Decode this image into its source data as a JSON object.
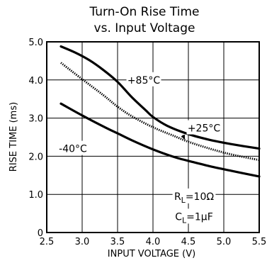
{
  "chart_data": {
    "type": "line",
    "title_line1": "Turn-On Rise Time",
    "title_line2": "vs. Input Voltage",
    "xlabel": "INPUT VOLTAGE (V)",
    "ylabel": "RISE TIME (ms)",
    "xlim": [
      2.5,
      5.5
    ],
    "ylim": [
      0,
      5.0
    ],
    "xticks": [
      "2.5",
      "3.0",
      "3.5",
      "4.0",
      "4.5",
      "5.0",
      "5.5"
    ],
    "yticks": [
      "0",
      "1.0",
      "2.0",
      "3.0",
      "4.0",
      "5.0"
    ],
    "grid": true,
    "series": [
      {
        "name": "+85°C",
        "style": "solid",
        "x": [
          2.7,
          2.9,
          3.1,
          3.3,
          3.5,
          3.7,
          3.9,
          4.0,
          4.2,
          4.5,
          4.8,
          5.1,
          5.5
        ],
        "y": [
          4.88,
          4.72,
          4.52,
          4.26,
          3.95,
          3.55,
          3.2,
          3.03,
          2.8,
          2.58,
          2.43,
          2.32,
          2.2
        ]
      },
      {
        "name": "+25°C",
        "style": "dotted",
        "x": [
          2.7,
          3.0,
          3.3,
          3.5,
          3.7,
          4.0,
          4.3,
          4.5,
          4.8,
          5.1,
          5.5
        ],
        "y": [
          4.45,
          4.02,
          3.6,
          3.3,
          3.05,
          2.76,
          2.53,
          2.38,
          2.2,
          2.05,
          1.9
        ]
      },
      {
        "name": "-40°C",
        "style": "solid",
        "x": [
          2.7,
          3.0,
          3.3,
          3.5,
          3.7,
          4.0,
          4.3,
          4.5,
          4.8,
          5.1,
          5.5
        ],
        "y": [
          3.38,
          3.07,
          2.78,
          2.6,
          2.42,
          2.18,
          1.98,
          1.88,
          1.74,
          1.62,
          1.47
        ]
      }
    ],
    "series_labels": [
      {
        "text": "+85°C",
        "at_x": 3.87,
        "at_y": 4.0
      },
      {
        "text": "+25°C",
        "at_x": 4.72,
        "at_y": 2.74
      },
      {
        "text": "-40°C",
        "at_x": 2.87,
        "at_y": 2.2
      }
    ],
    "annotations": [
      {
        "prefix": "R",
        "sub": "L",
        "suffix": "=10Ω",
        "at_x": 4.58,
        "at_y": 0.95
      },
      {
        "prefix": "C",
        "sub": "L",
        "suffix": "=1μF",
        "at_x": 4.58,
        "at_y": 0.42
      }
    ]
  }
}
